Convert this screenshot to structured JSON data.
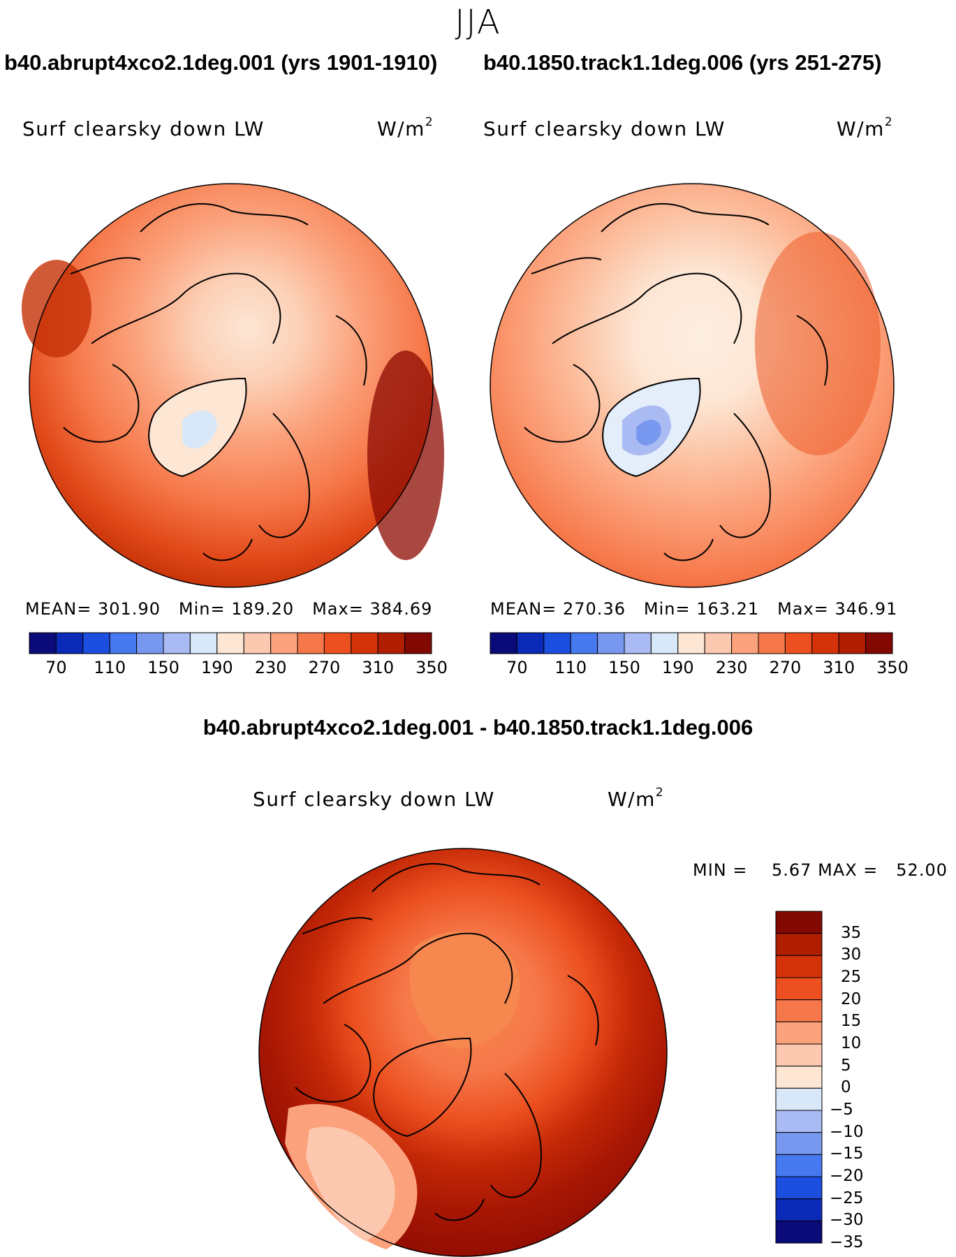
{
  "figure": {
    "season": "JJA",
    "panels": [
      {
        "title": "b40.abrupt4xco2.1deg.001 (yrs 1901-1910)",
        "variable": "Surf clearsky down LW",
        "units_base": "W/m",
        "units_exp": "2",
        "mean_label": "MEAN=",
        "mean": "301.90",
        "min_label": "Min=",
        "min": "189.20",
        "max_label": "Max=",
        "max": "384.69"
      },
      {
        "title": "b40.1850.track1.1deg.006 (yrs 251-275)",
        "variable": "Surf clearsky down LW",
        "units_base": "W/m",
        "units_exp": "2",
        "mean_label": "MEAN=",
        "mean": "270.36",
        "min_label": "Min=",
        "min": "163.21",
        "max_label": "Max=",
        "max": "346.91"
      }
    ],
    "diff": {
      "title": "b40.abrupt4xco2.1deg.001 - b40.1850.track1.1deg.006",
      "variable": "Surf clearsky down LW",
      "units_base": "W/m",
      "units_exp": "2",
      "min_label": "MIN =",
      "min": "5.67",
      "max_label": "MAX =",
      "max": "52.00"
    }
  },
  "colorbar_abs": {
    "colors": [
      "#0a0a78",
      "#0b2ab8",
      "#1c4ee0",
      "#4678f0",
      "#7898f0",
      "#aabaf2",
      "#d8e8f8",
      "#fde6d4",
      "#fcc8b0",
      "#fba27c",
      "#f6784a",
      "#ec5020",
      "#d43208",
      "#b01e02",
      "#820802"
    ],
    "ticks": [
      "70",
      "110",
      "150",
      "190",
      "230",
      "270",
      "310",
      "350"
    ]
  },
  "colorbar_diff": {
    "colors": [
      "#820802",
      "#b01e02",
      "#d43208",
      "#ec5020",
      "#f6784a",
      "#fba27c",
      "#fcc8b0",
      "#fde6d4",
      "#d8e8f8",
      "#aabaf2",
      "#7898f0",
      "#4678f0",
      "#1c4ee0",
      "#0b2ab8",
      "#0a0a78"
    ],
    "ticks": [
      "35",
      "30",
      "25",
      "20",
      "15",
      "10",
      "5",
      "0",
      "−5",
      "−10",
      "−15",
      "−20",
      "−25",
      "−30",
      "−35"
    ]
  }
}
